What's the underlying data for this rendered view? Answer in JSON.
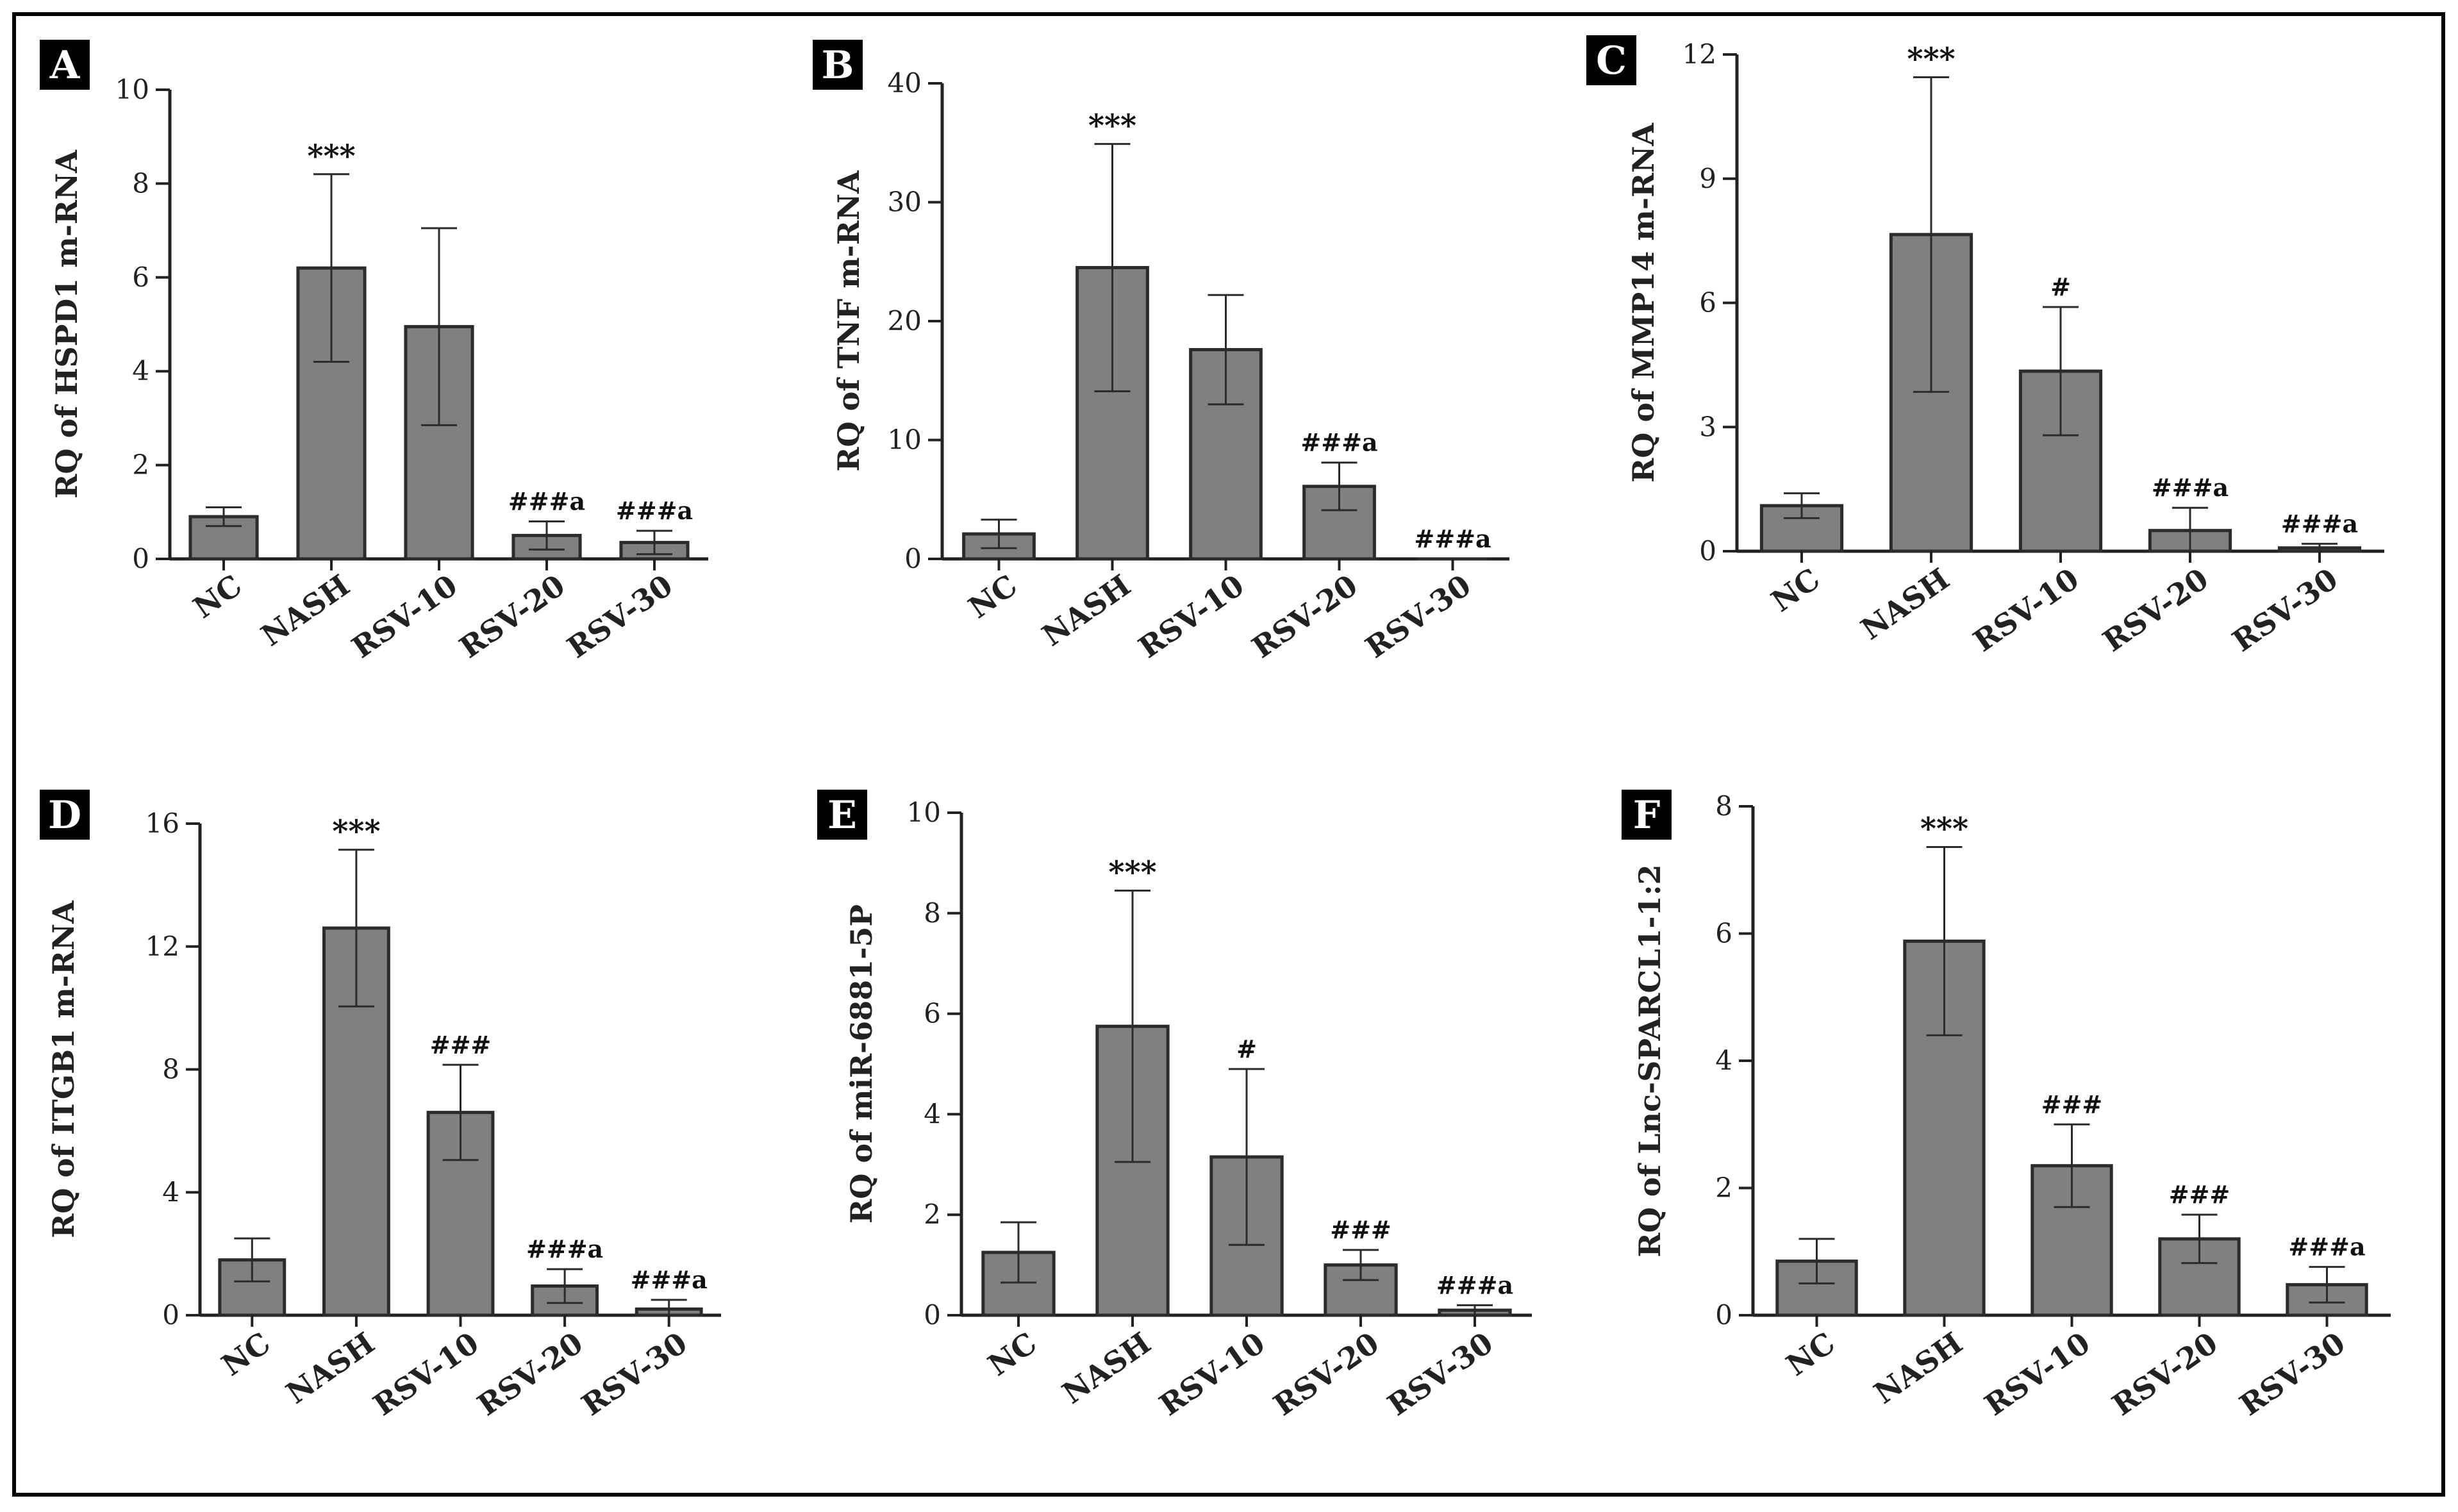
{
  "colors": {
    "bar_fill": "#808080",
    "bar_stroke": "#2b2b2b",
    "axis": "#222222",
    "frame": "#000000",
    "letter_bg": "#000000",
    "letter_text": "#ffffff"
  },
  "chart_data": [
    {
      "panel": "A",
      "type": "bar",
      "ylabel": "RQ of HSPD1 m-RNA",
      "categories": [
        "NC",
        "NASH",
        "RSV-10",
        "RSV-20",
        "RSV-30"
      ],
      "values": [
        0.9,
        6.2,
        4.95,
        0.5,
        0.35
      ],
      "errors": [
        0.2,
        2.0,
        2.1,
        0.3,
        0.25
      ],
      "annotations": [
        "",
        "***",
        "",
        "###a",
        "###a"
      ],
      "ylim": [
        0,
        10
      ],
      "yticks": [
        0,
        2,
        4,
        6,
        8,
        10
      ]
    },
    {
      "panel": "B",
      "type": "bar",
      "ylabel": "RQ of TNF m-RNA",
      "categories": [
        "NC",
        "NASH",
        "RSV-10",
        "RSV-20",
        "RSV-30"
      ],
      "values": [
        2.1,
        24.5,
        17.6,
        6.1,
        0.0
      ],
      "errors": [
        1.2,
        10.4,
        4.6,
        2.0,
        0.0
      ],
      "annotations": [
        "",
        "***",
        "",
        "###a",
        "###a"
      ],
      "ylim": [
        0,
        40
      ],
      "yticks": [
        0,
        10,
        20,
        30,
        40
      ]
    },
    {
      "panel": "C",
      "type": "bar",
      "ylabel": "RQ of MMP14 m-RNA",
      "categories": [
        "NC",
        "NASH",
        "RSV-10",
        "RSV-20",
        "RSV-30"
      ],
      "values": [
        1.1,
        7.65,
        4.35,
        0.5,
        0.08
      ],
      "errors": [
        0.3,
        3.8,
        1.55,
        0.55,
        0.1
      ],
      "annotations": [
        "",
        "***",
        "#",
        "###a",
        "###a"
      ],
      "ylim": [
        0,
        12
      ],
      "yticks": [
        0,
        3,
        6,
        9,
        12
      ]
    },
    {
      "panel": "D",
      "type": "bar",
      "ylabel": "RQ of ITGB1 m-RNA",
      "categories": [
        "NC",
        "NASH",
        "RSV-10",
        "RSV-20",
        "RSV-30"
      ],
      "values": [
        1.8,
        12.6,
        6.6,
        0.95,
        0.2
      ],
      "errors": [
        0.7,
        2.55,
        1.55,
        0.55,
        0.3
      ],
      "annotations": [
        "",
        "***",
        "###",
        "###a",
        "###a"
      ],
      "ylim": [
        0,
        16
      ],
      "yticks": [
        0,
        4,
        8,
        12,
        16
      ]
    },
    {
      "panel": "E",
      "type": "bar",
      "ylabel": "RQ of miR-6881-5P",
      "categories": [
        "NC",
        "NASH",
        "RSV-10",
        "RSV-20",
        "RSV-30"
      ],
      "values": [
        1.25,
        5.75,
        3.15,
        1.0,
        0.1
      ],
      "errors": [
        0.6,
        2.7,
        1.75,
        0.3,
        0.1
      ],
      "annotations": [
        "",
        "***",
        "#",
        "###",
        "###a"
      ],
      "ylim": [
        0,
        10
      ],
      "yticks": [
        0,
        2,
        4,
        6,
        8,
        10
      ]
    },
    {
      "panel": "F",
      "type": "bar",
      "ylabel": "RQ of Lnc-SPARCL1-1:2",
      "categories": [
        "NC",
        "NASH",
        "RSV-10",
        "RSV-20",
        "RSV-30"
      ],
      "values": [
        0.85,
        5.88,
        2.35,
        1.2,
        0.48
      ],
      "errors": [
        0.35,
        1.48,
        0.65,
        0.38,
        0.28
      ],
      "annotations": [
        "",
        "***",
        "###",
        "###",
        "###a"
      ],
      "ylim": [
        0,
        8
      ],
      "yticks": [
        0,
        2,
        4,
        6,
        8
      ]
    }
  ]
}
